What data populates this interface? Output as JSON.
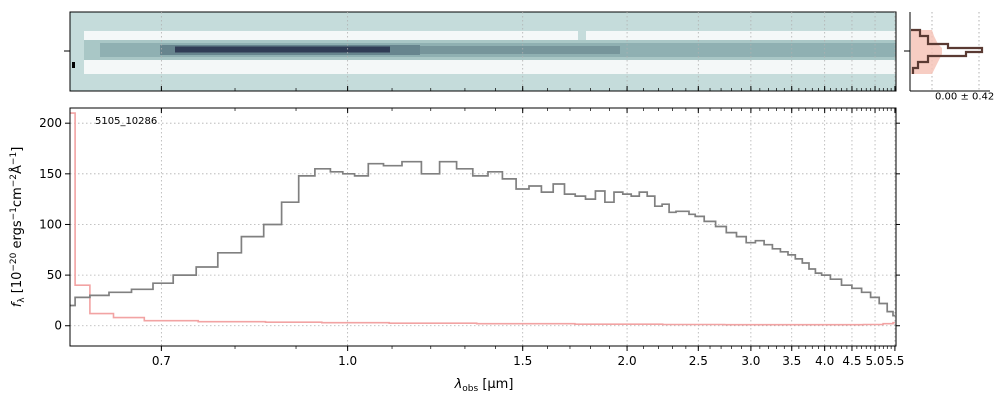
{
  "chart_data": [
    {
      "type": "heatmap",
      "panel": "2d-spectrum",
      "colormap": [
        "#c5dcdb",
        "#ffffff",
        "#a9c7c6",
        "#6f8f95",
        "#2b3550"
      ]
    },
    {
      "type": "line",
      "panel": "1d-spectrum",
      "object_label": "5105_10286",
      "xlabel": "λ_obs [μm]",
      "ylabel": "f_λ [10^−20 ergs^−1cm^−2Å^−1]",
      "xscale": "reciprocal",
      "xlim": [
        0.6,
        5.53
      ],
      "ylim": [
        -20,
        215
      ],
      "x_ticks": [
        0.7,
        1.0,
        1.5,
        2.0,
        2.5,
        3.0,
        3.5,
        4.0,
        4.5,
        5.0,
        5.5
      ],
      "x_tick_labels": [
        "0.7",
        "1.0",
        "1.5",
        "2.0",
        "2.5",
        "3.0",
        "3.5",
        "4.0",
        "4.5",
        "5.0",
        "5.5"
      ],
      "y_ticks": [
        0,
        50,
        100,
        150,
        200
      ],
      "y_tick_labels": [
        "0",
        "50",
        "100",
        "150",
        "200"
      ],
      "grid": true,
      "series": [
        {
          "role": "flux",
          "color": "#808080",
          "x": [
            0.6,
            0.61,
            0.63,
            0.65,
            0.68,
            0.7,
            0.73,
            0.76,
            0.79,
            0.83,
            0.86,
            0.89,
            0.92,
            0.95,
            0.98,
            1.0,
            1.03,
            1.06,
            1.1,
            1.15,
            1.2,
            1.25,
            1.3,
            1.35,
            1.4,
            1.45,
            1.5,
            1.55,
            1.6,
            1.65,
            1.7,
            1.75,
            1.8,
            1.85,
            1.9,
            1.95,
            2.0,
            2.05,
            2.1,
            2.15,
            2.2,
            2.25,
            2.3,
            2.35,
            2.4,
            2.45,
            2.5,
            2.6,
            2.7,
            2.8,
            2.9,
            3.0,
            3.1,
            3.2,
            3.3,
            3.4,
            3.5,
            3.6,
            3.7,
            3.8,
            3.9,
            4.0,
            4.2,
            4.4,
            4.6,
            4.8,
            5.0,
            5.2,
            5.4,
            5.5
          ],
          "y": [
            20,
            28,
            30,
            33,
            36,
            42,
            50,
            58,
            72,
            88,
            100,
            122,
            148,
            155,
            152,
            150,
            148,
            160,
            158,
            162,
            150,
            162,
            155,
            148,
            152,
            145,
            135,
            138,
            132,
            140,
            130,
            128,
            125,
            133,
            122,
            132,
            130,
            128,
            132,
            128,
            118,
            120,
            112,
            113,
            113,
            110,
            108,
            103,
            98,
            92,
            88,
            82,
            84,
            80,
            76,
            73,
            70,
            66,
            62,
            56,
            52,
            50,
            46,
            40,
            37,
            33,
            28,
            22,
            14,
            10
          ]
        },
        {
          "role": "error",
          "color": "#f2a3a3",
          "x": [
            0.6,
            0.61,
            0.63,
            0.66,
            0.7,
            0.8,
            0.9,
            1.0,
            1.2,
            1.5,
            2.0,
            2.5,
            3.0,
            3.5,
            4.0,
            4.5,
            5.0,
            5.4,
            5.5
          ],
          "y": [
            210,
            40,
            12,
            8,
            5,
            4,
            3.5,
            3,
            2.5,
            2,
            1.5,
            1.2,
            1,
            1,
            1,
            1,
            1.2,
            2,
            3
          ]
        }
      ]
    },
    {
      "type": "line",
      "panel": "spatial-profile",
      "annotation": "0.00 ± 0.42",
      "series": [
        {
          "role": "profile",
          "color": "#5a3a33"
        },
        {
          "role": "model",
          "color": "#f6c4b8"
        }
      ]
    }
  ]
}
